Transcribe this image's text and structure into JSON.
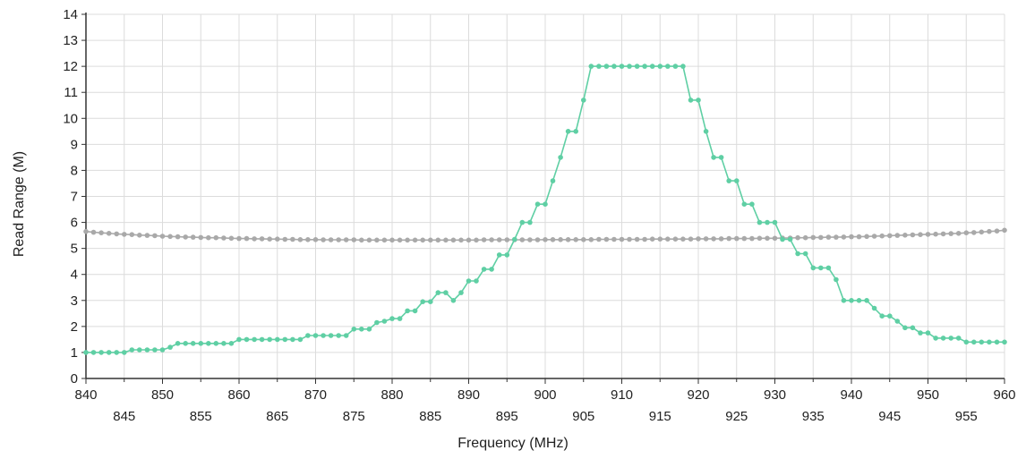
{
  "chart_data": {
    "type": "line",
    "title": "",
    "xlabel": "Frequency (MHz)",
    "ylabel": "Read Range (M)",
    "xlim": [
      840,
      960
    ],
    "ylim": [
      0,
      14
    ],
    "grid": true,
    "x_ticks_upper": [
      840,
      850,
      860,
      870,
      880,
      890,
      900,
      910,
      920,
      930,
      940,
      950,
      960
    ],
    "x_ticks_lower": [
      845,
      855,
      865,
      875,
      885,
      895,
      905,
      915,
      925,
      935,
      945,
      955
    ],
    "y_ticks": [
      0,
      1,
      2,
      3,
      4,
      5,
      6,
      7,
      8,
      9,
      10,
      11,
      12,
      13,
      14
    ],
    "colors": {
      "series1": "#5fcfa4",
      "series2": "#a9a9a9",
      "grid": "#dcdcdc",
      "axis": "#333333"
    },
    "series": [
      {
        "x": [
          840,
          841,
          842,
          843,
          844,
          845,
          846,
          847,
          848,
          849,
          850,
          851,
          852,
          853,
          854,
          855,
          856,
          857,
          858,
          859,
          860,
          861,
          862,
          863,
          864,
          865,
          866,
          867,
          868,
          869,
          870,
          871,
          872,
          873,
          874,
          875,
          876,
          877,
          878,
          879,
          880,
          881,
          882,
          883,
          884,
          885,
          886,
          887,
          888,
          889,
          890,
          891,
          892,
          893,
          894,
          895,
          896,
          897,
          898,
          899,
          900,
          901,
          902,
          903,
          904,
          905,
          906,
          907,
          908,
          909,
          910,
          911,
          912,
          913,
          914,
          915,
          916,
          917,
          918,
          919,
          920,
          921,
          922,
          923,
          924,
          925,
          926,
          927,
          928,
          929,
          930,
          931,
          932,
          933,
          934,
          935,
          936,
          937,
          938,
          939,
          940,
          941,
          942,
          943,
          944,
          945,
          946,
          947,
          948,
          949,
          950,
          951,
          952,
          953,
          954,
          955,
          956,
          957,
          958,
          959,
          960
        ],
        "y": [
          1.0,
          1.0,
          1.0,
          1.0,
          1.0,
          1.0,
          1.1,
          1.1,
          1.1,
          1.1,
          1.1,
          1.2,
          1.35,
          1.35,
          1.35,
          1.35,
          1.35,
          1.35,
          1.35,
          1.35,
          1.5,
          1.5,
          1.5,
          1.5,
          1.5,
          1.5,
          1.5,
          1.5,
          1.5,
          1.65,
          1.65,
          1.65,
          1.65,
          1.65,
          1.65,
          1.9,
          1.9,
          1.9,
          2.15,
          2.2,
          2.3,
          2.3,
          2.6,
          2.6,
          2.95,
          2.95,
          3.3,
          3.3,
          3.0,
          3.3,
          3.75,
          3.75,
          4.2,
          4.2,
          4.75,
          4.75,
          5.35,
          6.0,
          6.0,
          6.7,
          6.7,
          7.6,
          8.5,
          9.5,
          9.5,
          10.7,
          12.0,
          12.0,
          12.0,
          12.0,
          12.0,
          12.0,
          12.0,
          12.0,
          12.0,
          12.0,
          12.0,
          12.0,
          12.0,
          10.7,
          10.7,
          9.5,
          8.5,
          8.5,
          7.6,
          7.6,
          6.7,
          6.7,
          6.0,
          6.0,
          6.0,
          5.35,
          5.35,
          4.8,
          4.8,
          4.25,
          4.25,
          4.25,
          3.8,
          3.0,
          3.0,
          3.0,
          3.0,
          2.7,
          2.4,
          2.4,
          2.2,
          1.95,
          1.95,
          1.75,
          1.75,
          1.55,
          1.55,
          1.55,
          1.55,
          1.4,
          1.4,
          1.4,
          1.4,
          1.4,
          1.4
        ]
      },
      {
        "x": [
          840,
          841,
          842,
          843,
          844,
          845,
          846,
          847,
          848,
          849,
          850,
          851,
          852,
          853,
          854,
          855,
          856,
          857,
          858,
          859,
          860,
          861,
          862,
          863,
          864,
          865,
          866,
          867,
          868,
          869,
          870,
          871,
          872,
          873,
          874,
          875,
          876,
          877,
          878,
          879,
          880,
          881,
          882,
          883,
          884,
          885,
          886,
          887,
          888,
          889,
          890,
          891,
          892,
          893,
          894,
          895,
          896,
          897,
          898,
          899,
          900,
          901,
          902,
          903,
          904,
          905,
          906,
          907,
          908,
          909,
          910,
          911,
          912,
          913,
          914,
          915,
          916,
          917,
          918,
          919,
          920,
          921,
          922,
          923,
          924,
          925,
          926,
          927,
          928,
          929,
          930,
          931,
          932,
          933,
          934,
          935,
          936,
          937,
          938,
          939,
          940,
          941,
          942,
          943,
          944,
          945,
          946,
          947,
          948,
          949,
          950,
          951,
          952,
          953,
          954,
          955,
          956,
          957,
          958,
          959,
          960
        ],
        "y": [
          5.65,
          5.62,
          5.6,
          5.58,
          5.56,
          5.54,
          5.53,
          5.51,
          5.5,
          5.49,
          5.47,
          5.46,
          5.45,
          5.44,
          5.43,
          5.42,
          5.41,
          5.41,
          5.4,
          5.39,
          5.38,
          5.38,
          5.37,
          5.37,
          5.36,
          5.36,
          5.35,
          5.35,
          5.34,
          5.34,
          5.34,
          5.33,
          5.33,
          5.33,
          5.33,
          5.33,
          5.32,
          5.32,
          5.32,
          5.32,
          5.32,
          5.32,
          5.32,
          5.32,
          5.32,
          5.32,
          5.32,
          5.32,
          5.32,
          5.32,
          5.32,
          5.32,
          5.33,
          5.33,
          5.33,
          5.33,
          5.33,
          5.33,
          5.33,
          5.33,
          5.34,
          5.34,
          5.34,
          5.34,
          5.34,
          5.34,
          5.34,
          5.35,
          5.35,
          5.35,
          5.35,
          5.35,
          5.35,
          5.35,
          5.36,
          5.36,
          5.36,
          5.36,
          5.36,
          5.36,
          5.37,
          5.37,
          5.37,
          5.37,
          5.38,
          5.38,
          5.38,
          5.38,
          5.39,
          5.39,
          5.39,
          5.4,
          5.4,
          5.41,
          5.41,
          5.42,
          5.42,
          5.43,
          5.43,
          5.44,
          5.45,
          5.45,
          5.46,
          5.47,
          5.48,
          5.49,
          5.5,
          5.51,
          5.52,
          5.53,
          5.54,
          5.55,
          5.56,
          5.57,
          5.58,
          5.6,
          5.61,
          5.63,
          5.65,
          5.67,
          5.7
        ]
      }
    ]
  }
}
